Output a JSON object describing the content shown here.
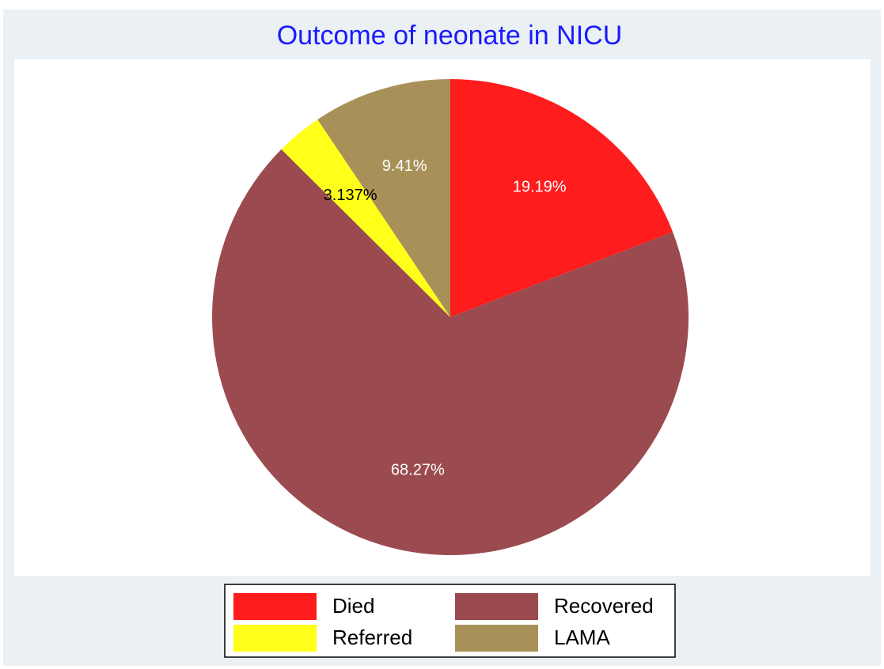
{
  "chart_data": {
    "type": "pie",
    "title": "Outcome of neonate in NICU",
    "categories": [
      "Died",
      "Recovered",
      "Referred",
      "LAMA"
    ],
    "values": [
      19.19,
      68.27,
      3.137,
      9.41
    ],
    "value_labels": [
      "19.19%",
      "68.27%",
      "3.137%",
      "9.41%"
    ],
    "colors": [
      "#ff1c1c",
      "#9b4b50",
      "#ffff19",
      "#a89158"
    ],
    "label_colors": [
      "#ffffff",
      "#ffffff",
      "#000000",
      "#ffffff"
    ]
  }
}
